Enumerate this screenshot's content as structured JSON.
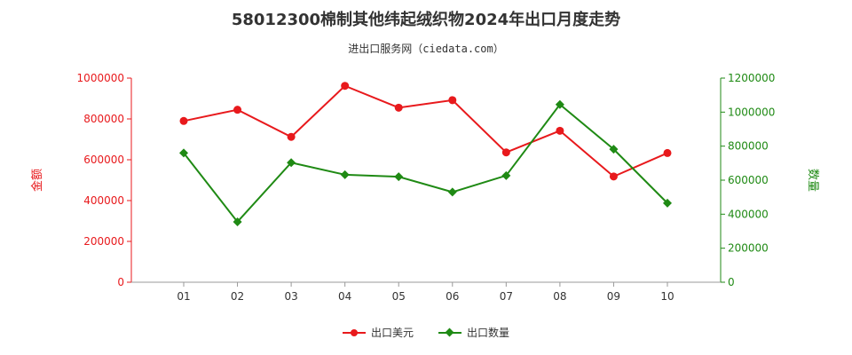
{
  "title": "58012300棉制其他纬起绒织物2024年出口月度走势",
  "subtitle": "进出口服务网（ciedata.com）",
  "chart_data": {
    "type": "line",
    "categories": [
      "01",
      "02",
      "03",
      "04",
      "05",
      "06",
      "07",
      "08",
      "09",
      "10"
    ],
    "y_left": {
      "label": "金额",
      "ylim": [
        0,
        1000000
      ],
      "ticks": [
        "0",
        "200000",
        "400000",
        "600000",
        "800000",
        "1000000"
      ],
      "color": "#e8191c"
    },
    "y_right": {
      "label": "数量",
      "ylim": [
        0,
        1200000
      ],
      "ticks": [
        "0",
        "200000",
        "400000",
        "600000",
        "800000",
        "1000000",
        "1200000"
      ],
      "color": "#1f8a14"
    },
    "series": [
      {
        "name": "出口美元",
        "axis": "left",
        "color": "#e8191c",
        "marker": "circle",
        "values": [
          790000,
          845000,
          712000,
          962000,
          855000,
          892000,
          636000,
          742000,
          518000,
          633000
        ]
      },
      {
        "name": "出口数量",
        "axis": "right",
        "color": "#1f8a14",
        "marker": "diamond",
        "values": [
          760000,
          355000,
          703000,
          632000,
          620000,
          530000,
          627000,
          1045000,
          782000,
          465000
        ]
      }
    ],
    "grid": false,
    "legend_position": "bottom"
  }
}
